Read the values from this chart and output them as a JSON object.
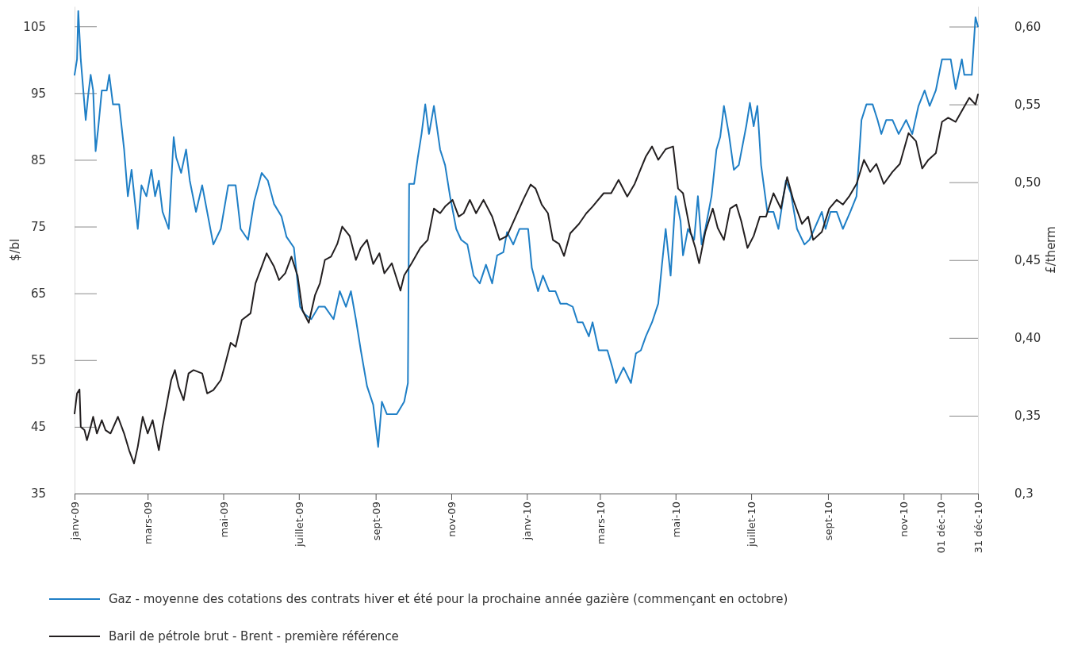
{
  "chart_data": {
    "type": "line",
    "ylabel": "$/bl",
    "y2label": "£/therm",
    "legend": "bottom",
    "grid": false,
    "xlim": [
      "2009-01-01",
      "2010-12-31"
    ],
    "xticks": [
      {
        "value": "2009-01-01",
        "label": "janv-09"
      },
      {
        "value": "2009-03-01",
        "label": "mars-09"
      },
      {
        "value": "2009-05-01",
        "label": "mai-09"
      },
      {
        "value": "2009-07-01",
        "label": "juillet-09"
      },
      {
        "value": "2009-09-01",
        "label": "sept-09"
      },
      {
        "value": "2009-11-01",
        "label": "nov-09"
      },
      {
        "value": "2010-01-01",
        "label": "janv-10"
      },
      {
        "value": "2010-03-01",
        "label": "mars-10"
      },
      {
        "value": "2010-05-01",
        "label": "mai-10"
      },
      {
        "value": "2010-07-01",
        "label": "juillet-10"
      },
      {
        "value": "2010-09-01",
        "label": "sept-10"
      },
      {
        "value": "2010-11-01",
        "label": "nov-10"
      },
      {
        "value": "2010-12-01",
        "label": "01 déc-10"
      },
      {
        "value": "2010-12-31",
        "label": "31 déc-10"
      }
    ],
    "ylim": [
      35,
      108
    ],
    "yticks": [
      35,
      45,
      55,
      65,
      75,
      85,
      95,
      105
    ],
    "y2lim": [
      0.3,
      0.613
    ],
    "y2ticks": [
      {
        "value": 0.3,
        "label": "0,3"
      },
      {
        "value": 0.35,
        "label": "0,35"
      },
      {
        "value": 0.4,
        "label": "0,40"
      },
      {
        "value": 0.45,
        "label": "0,45"
      },
      {
        "value": 0.5,
        "label": "0,50"
      },
      {
        "value": 0.55,
        "label": "0,55"
      },
      {
        "value": 0.6,
        "label": "0,60"
      }
    ],
    "series": [
      {
        "name": "Gaz - moyenne des cotations des contrats hiver et été pour la prochaine année gazière (commençant en octobre)",
        "color": "#1f7fc6",
        "axis": "y2",
        "x": [
          "2009-01-01",
          "2009-01-03",
          "2009-01-04",
          "2009-01-06",
          "2009-01-10",
          "2009-01-12",
          "2009-01-14",
          "2009-01-16",
          "2009-01-18",
          "2009-01-20",
          "2009-01-23",
          "2009-01-27",
          "2009-01-29",
          "2009-02-01",
          "2009-02-06",
          "2009-02-10",
          "2009-02-13",
          "2009-02-16",
          "2009-02-21",
          "2009-02-24",
          "2009-02-28",
          "2009-03-04",
          "2009-03-07",
          "2009-03-10",
          "2009-03-13",
          "2009-03-18",
          "2009-03-22",
          "2009-03-24",
          "2009-03-28",
          "2009-04-01",
          "2009-04-04",
          "2009-04-09",
          "2009-04-14",
          "2009-04-18",
          "2009-04-23",
          "2009-04-29",
          "2009-05-05",
          "2009-05-11",
          "2009-05-15",
          "2009-05-21",
          "2009-05-26",
          "2009-06-01",
          "2009-06-06",
          "2009-06-11",
          "2009-06-17",
          "2009-06-21",
          "2009-06-27",
          "2009-07-02",
          "2009-07-06",
          "2009-07-11",
          "2009-07-17",
          "2009-07-22",
          "2009-07-29",
          "2009-08-03",
          "2009-08-08",
          "2009-08-12",
          "2009-08-16",
          "2009-08-20",
          "2009-08-25",
          "2009-08-30",
          "2009-09-03",
          "2009-09-06",
          "2009-09-10",
          "2009-09-18",
          "2009-09-24",
          "2009-09-27",
          "2009-09-28",
          "2009-10-02",
          "2009-10-05",
          "2009-10-08",
          "2009-10-11",
          "2009-10-14",
          "2009-10-18",
          "2009-10-23",
          "2009-10-27",
          "2009-10-31",
          "2009-11-05",
          "2009-11-09",
          "2009-11-14",
          "2009-11-19",
          "2009-11-24",
          "2009-11-29",
          "2009-12-04",
          "2009-12-08",
          "2009-12-13",
          "2009-12-16",
          "2009-12-21",
          "2009-12-26",
          "2010-01-02",
          "2010-01-05",
          "2010-01-10",
          "2010-01-14",
          "2010-01-19",
          "2010-01-24",
          "2010-01-28",
          "2010-02-02",
          "2010-02-07",
          "2010-02-11",
          "2010-02-15",
          "2010-02-20",
          "2010-02-23",
          "2010-02-28",
          "2010-03-07",
          "2010-03-11",
          "2010-03-14",
          "2010-03-20",
          "2010-03-26",
          "2010-03-30",
          "2010-04-03",
          "2010-04-07",
          "2010-04-12",
          "2010-04-17",
          "2010-04-20",
          "2010-04-23",
          "2010-04-27",
          "2010-05-01",
          "2010-05-05",
          "2010-05-07",
          "2010-05-11",
          "2010-05-16",
          "2010-05-19",
          "2010-05-22",
          "2010-05-25",
          "2010-05-30",
          "2010-06-03",
          "2010-06-06",
          "2010-06-09",
          "2010-06-13",
          "2010-06-17",
          "2010-06-21",
          "2010-06-27",
          "2010-06-30",
          "2010-07-03",
          "2010-07-06",
          "2010-07-09",
          "2010-07-14",
          "2010-07-19",
          "2010-07-23",
          "2010-07-29",
          "2010-08-02",
          "2010-08-07",
          "2010-08-13",
          "2010-08-17",
          "2010-08-21",
          "2010-08-27",
          "2010-08-30",
          "2010-09-03",
          "2010-09-08",
          "2010-09-13",
          "2010-09-19",
          "2010-09-24",
          "2010-09-28",
          "2010-10-02",
          "2010-10-07",
          "2010-10-11",
          "2010-10-14",
          "2010-10-18",
          "2010-10-23",
          "2010-10-28",
          "2010-11-03",
          "2010-11-08",
          "2010-11-13",
          "2010-11-18",
          "2010-11-22",
          "2010-11-27",
          "2010-12-02",
          "2010-12-09",
          "2010-12-13",
          "2010-12-18",
          "2010-12-20",
          "2010-12-26",
          "2010-12-29",
          "2010-12-31"
        ],
        "values": [
          0.569,
          0.579,
          0.61,
          0.579,
          0.54,
          0.556,
          0.569,
          0.559,
          0.52,
          0.534,
          0.559,
          0.559,
          0.569,
          0.55,
          0.55,
          0.521,
          0.491,
          0.508,
          0.47,
          0.498,
          0.491,
          0.508,
          0.491,
          0.501,
          0.481,
          0.47,
          0.529,
          0.516,
          0.506,
          0.521,
          0.501,
          0.481,
          0.498,
          0.481,
          0.46,
          0.47,
          0.498,
          0.498,
          0.47,
          0.463,
          0.488,
          0.506,
          0.501,
          0.486,
          0.478,
          0.465,
          0.458,
          0.42,
          0.415,
          0.412,
          0.42,
          0.42,
          0.412,
          0.43,
          0.42,
          0.43,
          0.412,
          0.392,
          0.369,
          0.357,
          0.33,
          0.359,
          0.351,
          0.351,
          0.359,
          0.371,
          0.499,
          0.499,
          0.516,
          0.531,
          0.55,
          0.531,
          0.549,
          0.521,
          0.511,
          0.491,
          0.47,
          0.463,
          0.46,
          0.44,
          0.435,
          0.447,
          0.435,
          0.453,
          0.455,
          0.468,
          0.46,
          0.47,
          0.47,
          0.445,
          0.43,
          0.44,
          0.43,
          0.43,
          0.422,
          0.422,
          0.42,
          0.41,
          0.41,
          0.401,
          0.41,
          0.392,
          0.392,
          0.381,
          0.371,
          0.381,
          0.371,
          0.39,
          0.392,
          0.401,
          0.41,
          0.422,
          0.447,
          0.47,
          0.44,
          0.491,
          0.475,
          0.453,
          0.47,
          0.463,
          0.491,
          0.46,
          0.47,
          0.491,
          0.521,
          0.529,
          0.549,
          0.531,
          0.508,
          0.511,
          0.536,
          0.551,
          0.536,
          0.549,
          0.511,
          0.481,
          0.481,
          0.47,
          0.501,
          0.493,
          0.47,
          0.46,
          0.463,
          0.47,
          0.481,
          0.47,
          0.481,
          0.481,
          0.47,
          0.481,
          0.491,
          0.54,
          0.55,
          0.55,
          0.54,
          0.531,
          0.54,
          0.54,
          0.531,
          0.54,
          0.531,
          0.549,
          0.559,
          0.549,
          0.559,
          0.579,
          0.579,
          0.56,
          0.579,
          0.569,
          0.569,
          0.606,
          0.6
        ]
      },
      {
        "name": "Baril de pétrole brut - Brent - première référence",
        "color": "#231f20",
        "x": [
          "2009-01-01",
          "2009-01-03",
          "2009-01-05",
          "2009-01-06",
          "2009-01-09",
          "2009-01-11",
          "2009-01-14",
          "2009-01-16",
          "2009-01-19",
          "2009-01-23",
          "2009-01-26",
          "2009-01-30",
          "2009-02-05",
          "2009-02-10",
          "2009-02-14",
          "2009-02-18",
          "2009-02-21",
          "2009-02-25",
          "2009-03-01",
          "2009-03-05",
          "2009-03-10",
          "2009-03-13",
          "2009-03-16",
          "2009-03-20",
          "2009-03-23",
          "2009-03-26",
          "2009-03-30",
          "2009-04-03",
          "2009-04-07",
          "2009-04-14",
          "2009-04-18",
          "2009-04-23",
          "2009-04-29",
          "2009-05-02",
          "2009-05-07",
          "2009-05-11",
          "2009-05-16",
          "2009-05-23",
          "2009-05-27",
          "2009-06-01",
          "2009-06-05",
          "2009-06-11",
          "2009-06-15",
          "2009-06-20",
          "2009-06-25",
          "2009-06-30",
          "2009-07-04",
          "2009-07-09",
          "2009-07-14",
          "2009-07-18",
          "2009-07-22",
          "2009-07-27",
          "2009-08-01",
          "2009-08-05",
          "2009-08-11",
          "2009-08-16",
          "2009-08-20",
          "2009-08-25",
          "2009-08-30",
          "2009-09-04",
          "2009-09-08",
          "2009-09-14",
          "2009-09-21",
          "2009-09-24",
          "2009-09-30",
          "2009-10-07",
          "2009-10-13",
          "2009-10-18",
          "2009-10-23",
          "2009-10-27",
          "2009-11-02",
          "2009-11-07",
          "2009-11-11",
          "2009-11-16",
          "2009-11-21",
          "2009-11-27",
          "2009-12-04",
          "2009-12-10",
          "2009-12-16",
          "2009-12-23",
          "2009-12-29",
          "2010-01-04",
          "2010-01-08",
          "2010-01-13",
          "2010-01-18",
          "2010-01-22",
          "2010-01-27",
          "2010-01-31",
          "2010-02-05",
          "2010-02-12",
          "2010-02-18",
          "2010-02-23",
          "2010-03-04",
          "2010-03-10",
          "2010-03-16",
          "2010-03-23",
          "2010-03-29",
          "2010-04-03",
          "2010-04-07",
          "2010-04-12",
          "2010-04-17",
          "2010-04-23",
          "2010-04-29",
          "2010-05-03",
          "2010-05-07",
          "2010-05-13",
          "2010-05-17",
          "2010-05-20",
          "2010-05-25",
          "2010-05-31",
          "2010-06-04",
          "2010-06-09",
          "2010-06-14",
          "2010-06-19",
          "2010-06-23",
          "2010-06-28",
          "2010-07-03",
          "2010-07-08",
          "2010-07-13",
          "2010-07-19",
          "2010-07-25",
          "2010-07-30",
          "2010-08-04",
          "2010-08-11",
          "2010-08-16",
          "2010-08-20",
          "2010-08-27",
          "2010-09-02",
          "2010-09-08",
          "2010-09-13",
          "2010-09-18",
          "2010-09-24",
          "2010-09-30",
          "2010-10-05",
          "2010-10-10",
          "2010-10-16",
          "2010-10-23",
          "2010-10-29",
          "2010-11-05",
          "2010-11-11",
          "2010-11-16",
          "2010-11-21",
          "2010-11-27",
          "2010-12-02",
          "2010-12-07",
          "2010-12-13",
          "2010-12-20",
          "2010-12-24",
          "2010-12-29",
          "2010-12-31"
        ],
        "values": [
          47.0,
          50,
          50.6,
          45,
          44.5,
          43,
          45,
          46.5,
          44,
          46,
          44.5,
          44,
          46.5,
          44,
          41.5,
          39.5,
          42,
          46.5,
          44,
          46,
          41.5,
          45,
          48,
          52,
          53.5,
          51,
          49,
          53,
          53.5,
          53,
          50,
          50.5,
          52,
          54,
          57.6,
          57,
          61,
          62,
          66.5,
          69,
          71,
          69,
          67,
          68,
          70.5,
          67.6,
          62.4,
          60.6,
          64.7,
          66.5,
          70,
          70.5,
          72.4,
          75,
          73.6,
          70,
          71.8,
          73,
          69.4,
          71,
          68,
          69.5,
          65.4,
          67.7,
          69.5,
          71.8,
          73,
          77.7,
          77,
          78,
          79,
          76.5,
          77,
          79,
          77,
          79,
          76.5,
          73,
          73.6,
          76.5,
          79,
          81.3,
          80.7,
          78.3,
          77,
          73,
          72.4,
          70.6,
          74,
          75.4,
          77,
          78,
          80,
          80,
          82,
          79.5,
          81.4,
          83.7,
          85.5,
          87,
          85,
          86.6,
          87,
          80.7,
          80,
          74.2,
          71.8,
          69.5,
          74.2,
          77.7,
          74.8,
          73,
          77.7,
          78.3,
          75.8,
          71.8,
          73.6,
          76.5,
          76.5,
          80,
          77.7,
          82.4,
          79,
          75.4,
          76.5,
          73,
          74.2,
          77.7,
          79,
          78.3,
          79.5,
          81.4,
          85,
          83.2,
          84.4,
          81.4,
          83.2,
          84.4,
          89,
          87.8,
          83.7,
          85,
          86,
          90.7,
          91.3,
          90.7,
          93,
          94.3,
          93.3,
          94.8
        ]
      }
    ]
  }
}
